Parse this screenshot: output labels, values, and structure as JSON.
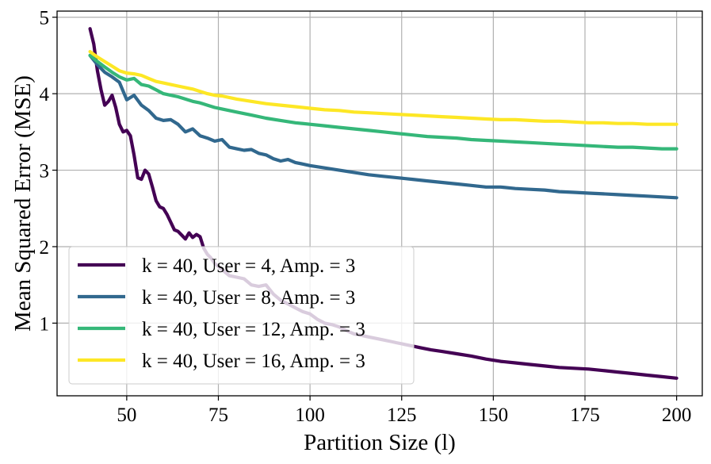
{
  "chart_data": {
    "type": "line",
    "title": "",
    "xlabel": "Partition Size (l)",
    "ylabel": "Mean Squared Error (MSE)",
    "xlim": [
      31,
      207
    ],
    "ylim": [
      0.05,
      5.08
    ],
    "xticks": [
      50,
      75,
      100,
      125,
      150,
      175,
      200
    ],
    "yticks": [
      1,
      2,
      3,
      4,
      5
    ],
    "grid": true,
    "legend_position": "lower-left",
    "series": [
      {
        "name": "k = 40, User = 4, Amp. = 3",
        "color": "#440154",
        "x": [
          40,
          41,
          42,
          43,
          44,
          45,
          46,
          47,
          48,
          49,
          50,
          51,
          52,
          53,
          54,
          55,
          56,
          57,
          58,
          59,
          60,
          61,
          62,
          63,
          64,
          65,
          66,
          67,
          68,
          69,
          70,
          71,
          72,
          73,
          74,
          76,
          78,
          80,
          82,
          84,
          86,
          88,
          90,
          92,
          94,
          96,
          98,
          100,
          102,
          104,
          106,
          108,
          110,
          112,
          114,
          116,
          118,
          120,
          122,
          124,
          126,
          128,
          130,
          133,
          136,
          140,
          144,
          148,
          152,
          156,
          160,
          164,
          168,
          172,
          176,
          180,
          184,
          188,
          192,
          196,
          200
        ],
        "y": [
          4.85,
          4.65,
          4.3,
          4.05,
          3.85,
          3.9,
          3.98,
          3.82,
          3.6,
          3.5,
          3.52,
          3.45,
          3.2,
          2.9,
          2.88,
          3.0,
          2.95,
          2.78,
          2.6,
          2.52,
          2.5,
          2.42,
          2.32,
          2.22,
          2.2,
          2.15,
          2.1,
          2.18,
          2.12,
          2.16,
          2.13,
          1.98,
          1.9,
          1.85,
          1.78,
          1.7,
          1.62,
          1.6,
          1.58,
          1.5,
          1.48,
          1.5,
          1.38,
          1.3,
          1.25,
          1.2,
          1.15,
          1.12,
          1.05,
          1.0,
          0.98,
          0.95,
          0.9,
          0.86,
          0.84,
          0.82,
          0.8,
          0.78,
          0.76,
          0.74,
          0.72,
          0.7,
          0.68,
          0.65,
          0.63,
          0.6,
          0.57,
          0.53,
          0.5,
          0.48,
          0.46,
          0.44,
          0.42,
          0.41,
          0.4,
          0.38,
          0.36,
          0.34,
          0.32,
          0.3,
          0.28
        ]
      },
      {
        "name": "k = 40, User = 8, Amp. = 3",
        "color": "#31688e",
        "x": [
          40,
          42,
          44,
          46,
          48,
          50,
          52,
          54,
          56,
          58,
          60,
          62,
          64,
          66,
          68,
          70,
          72,
          74,
          76,
          78,
          80,
          82,
          84,
          86,
          88,
          90,
          92,
          94,
          96,
          98,
          100,
          104,
          108,
          112,
          116,
          120,
          124,
          128,
          132,
          136,
          140,
          144,
          148,
          152,
          156,
          160,
          164,
          168,
          172,
          176,
          180,
          184,
          188,
          192,
          196,
          200
        ],
        "y": [
          4.5,
          4.38,
          4.28,
          4.22,
          4.15,
          3.92,
          3.98,
          3.85,
          3.78,
          3.68,
          3.65,
          3.66,
          3.6,
          3.5,
          3.54,
          3.45,
          3.42,
          3.38,
          3.4,
          3.3,
          3.28,
          3.26,
          3.27,
          3.22,
          3.2,
          3.15,
          3.12,
          3.14,
          3.1,
          3.08,
          3.06,
          3.03,
          3.0,
          2.97,
          2.94,
          2.92,
          2.9,
          2.88,
          2.86,
          2.84,
          2.82,
          2.8,
          2.78,
          2.78,
          2.76,
          2.75,
          2.74,
          2.72,
          2.71,
          2.7,
          2.69,
          2.68,
          2.67,
          2.66,
          2.65,
          2.64
        ]
      },
      {
        "name": "k = 40, User = 12, Amp. = 3",
        "color": "#35b779",
        "x": [
          40,
          42,
          44,
          46,
          48,
          50,
          52,
          54,
          56,
          58,
          60,
          62,
          64,
          66,
          68,
          70,
          72,
          74,
          76,
          80,
          84,
          88,
          92,
          96,
          100,
          104,
          108,
          112,
          116,
          120,
          124,
          128,
          132,
          136,
          140,
          144,
          148,
          152,
          156,
          160,
          164,
          168,
          172,
          176,
          180,
          184,
          188,
          192,
          196,
          200
        ],
        "y": [
          4.5,
          4.42,
          4.35,
          4.28,
          4.22,
          4.18,
          4.2,
          4.12,
          4.1,
          4.05,
          4.0,
          3.98,
          3.96,
          3.93,
          3.9,
          3.88,
          3.85,
          3.82,
          3.8,
          3.76,
          3.72,
          3.68,
          3.65,
          3.62,
          3.6,
          3.58,
          3.56,
          3.54,
          3.52,
          3.5,
          3.48,
          3.46,
          3.44,
          3.43,
          3.42,
          3.4,
          3.39,
          3.38,
          3.37,
          3.36,
          3.35,
          3.34,
          3.33,
          3.32,
          3.31,
          3.3,
          3.3,
          3.29,
          3.28,
          3.28
        ]
      },
      {
        "name": "k = 40, User = 16, Amp. = 3",
        "color": "#fde725",
        "x": [
          40,
          42,
          44,
          46,
          48,
          50,
          52,
          54,
          56,
          58,
          60,
          62,
          64,
          66,
          68,
          70,
          72,
          74,
          76,
          80,
          84,
          88,
          92,
          96,
          100,
          104,
          108,
          112,
          116,
          120,
          124,
          128,
          132,
          136,
          140,
          144,
          148,
          152,
          156,
          160,
          164,
          168,
          172,
          176,
          180,
          184,
          188,
          192,
          196,
          200
        ],
        "y": [
          4.55,
          4.48,
          4.42,
          4.36,
          4.3,
          4.27,
          4.26,
          4.24,
          4.2,
          4.16,
          4.14,
          4.12,
          4.1,
          4.08,
          4.06,
          4.03,
          4.0,
          3.98,
          3.97,
          3.93,
          3.9,
          3.87,
          3.85,
          3.83,
          3.81,
          3.79,
          3.78,
          3.76,
          3.75,
          3.74,
          3.73,
          3.72,
          3.71,
          3.7,
          3.69,
          3.68,
          3.67,
          3.66,
          3.66,
          3.65,
          3.64,
          3.64,
          3.63,
          3.62,
          3.62,
          3.61,
          3.61,
          3.6,
          3.6,
          3.6
        ]
      }
    ]
  }
}
